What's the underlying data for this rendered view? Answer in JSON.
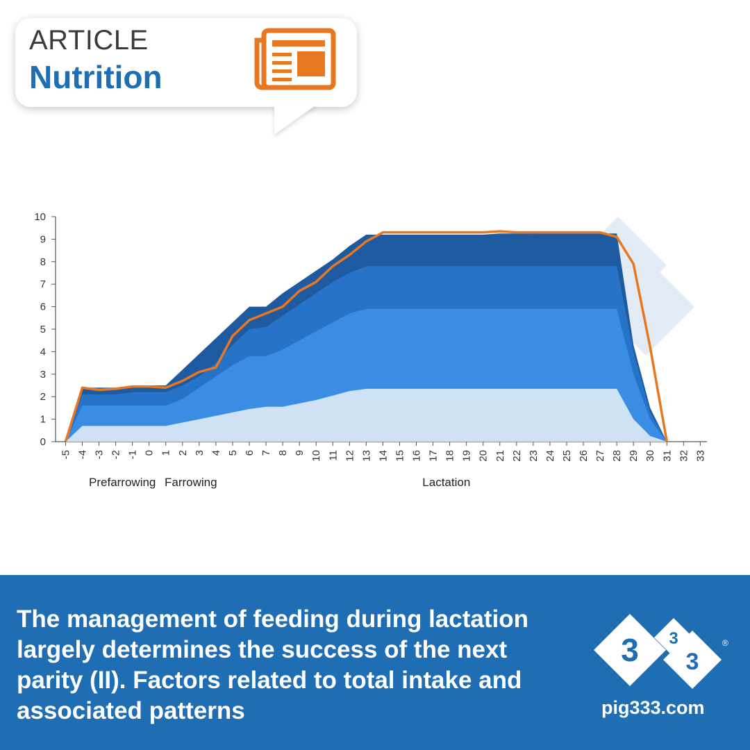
{
  "badge": {
    "kicker": "ARTICLE",
    "section": "Nutrition"
  },
  "headline": "The management of feeding during lactation largely determines the success of the next parity (II). Factors related to total intake and associated patterns",
  "logo": {
    "digit_left": "3",
    "digit_top": "3",
    "digit_right": "3",
    "site": "pig333.com",
    "reg": "®"
  },
  "colors": {
    "brand_blue": "#1f6db3",
    "accent_orange": "#e87722"
  },
  "chart_data": {
    "type": "area",
    "x": [
      -5,
      -4,
      -3,
      -2,
      -1,
      0,
      1,
      2,
      3,
      4,
      5,
      6,
      7,
      8,
      9,
      10,
      11,
      12,
      13,
      14,
      15,
      16,
      17,
      18,
      19,
      20,
      21,
      22,
      23,
      24,
      25,
      26,
      27,
      28,
      29,
      30,
      31
    ],
    "xticks": [
      "-5",
      "-4",
      "-3",
      "-2",
      "-1",
      "0",
      "1",
      "2",
      "3",
      "4",
      "5",
      "6",
      "7",
      "8",
      "9",
      "10",
      "11",
      "12",
      "13",
      "14",
      "15",
      "16",
      "17",
      "18",
      "19",
      "20",
      "21",
      "22",
      "23",
      "24",
      "25",
      "26",
      "27",
      "28",
      "29",
      "30",
      "31",
      "32",
      "33"
    ],
    "xlim": [
      -5.6,
      33.4
    ],
    "ylim": [
      0,
      10
    ],
    "yticks": [
      0,
      1,
      2,
      3,
      4,
      5,
      6,
      7,
      8,
      9,
      10
    ],
    "phases": [
      {
        "label": "Prefarrowing",
        "x": -1.6
      },
      {
        "label": "Farrowing",
        "x": 2.5
      },
      {
        "label": "Lactation",
        "x": 17.8
      }
    ],
    "series": [
      {
        "color": "#1e5aa0",
        "values": [
          0,
          2.4,
          2.4,
          2.4,
          2.5,
          2.5,
          2.5,
          3.2,
          3.9,
          4.6,
          5.3,
          6.0,
          6.0,
          6.6,
          7.1,
          7.6,
          8.1,
          8.7,
          9.2,
          9.2,
          9.2,
          9.2,
          9.2,
          9.2,
          9.2,
          9.2,
          9.25,
          9.25,
          9.25,
          9.25,
          9.25,
          9.25,
          9.25,
          9.25,
          4.3,
          1.5,
          0
        ]
      },
      {
        "color": "#2673c8",
        "values": [
          0,
          2.1,
          2.1,
          2.1,
          2.2,
          2.2,
          2.2,
          2.5,
          2.9,
          3.5,
          4.3,
          5.0,
          5.1,
          5.6,
          6.1,
          6.6,
          7.1,
          7.5,
          7.8,
          7.8,
          7.8,
          7.8,
          7.8,
          7.8,
          7.8,
          7.8,
          7.8,
          7.8,
          7.8,
          7.8,
          7.8,
          7.8,
          7.8,
          7.8,
          4.0,
          1.3,
          0
        ]
      },
      {
        "color": "#3a8de3",
        "values": [
          0,
          1.6,
          1.6,
          1.6,
          1.6,
          1.6,
          1.6,
          1.9,
          2.4,
          2.9,
          3.4,
          3.8,
          3.8,
          4.1,
          4.5,
          4.9,
          5.3,
          5.7,
          5.9,
          5.9,
          5.9,
          5.9,
          5.9,
          5.9,
          5.9,
          5.9,
          5.9,
          5.9,
          5.9,
          5.9,
          5.9,
          5.9,
          5.9,
          5.9,
          3.0,
          1.0,
          0
        ]
      },
      {
        "color": "#cfe2f5",
        "values": [
          0,
          0.7,
          0.7,
          0.7,
          0.7,
          0.7,
          0.7,
          0.85,
          1.0,
          1.15,
          1.3,
          1.45,
          1.55,
          1.55,
          1.7,
          1.85,
          2.05,
          2.25,
          2.35,
          2.35,
          2.35,
          2.35,
          2.35,
          2.35,
          2.35,
          2.35,
          2.35,
          2.35,
          2.35,
          2.35,
          2.35,
          2.35,
          2.35,
          2.35,
          1.0,
          0.25,
          0
        ]
      }
    ],
    "line": {
      "color": "#e87722",
      "values": [
        0,
        2.4,
        2.3,
        2.35,
        2.45,
        2.45,
        2.4,
        2.7,
        3.1,
        3.3,
        4.7,
        5.4,
        5.7,
        6.0,
        6.7,
        7.1,
        7.8,
        8.3,
        8.9,
        9.3,
        9.3,
        9.3,
        9.3,
        9.3,
        9.3,
        9.3,
        9.35,
        9.3,
        9.3,
        9.3,
        9.3,
        9.3,
        9.3,
        9.1,
        7.9,
        4.2,
        0
      ]
    }
  }
}
